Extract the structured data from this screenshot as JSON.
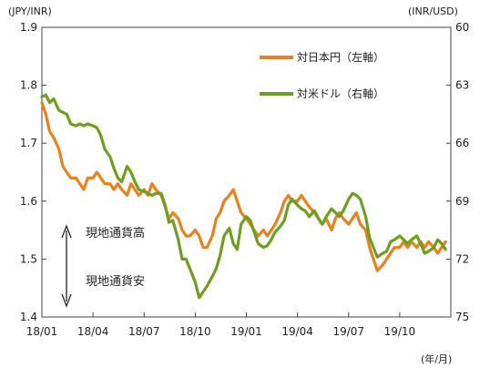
{
  "chart_data": {
    "type": "line",
    "left_axis_unit": "(JPY/INR)",
    "right_axis_unit": "(INR/USD)",
    "x_unit": "(年/月)",
    "left_ylim": [
      1.4,
      1.9
    ],
    "left_ticks": [
      "1.4",
      "1.5",
      "1.6",
      "1.7",
      "1.8",
      "1.9"
    ],
    "right_ylim": [
      60,
      75
    ],
    "right_reversed": true,
    "right_ticks": [
      "60",
      "63",
      "66",
      "69",
      "72",
      "75"
    ],
    "x_tick_labels": [
      "18/01",
      "18/04",
      "18/07",
      "18/10",
      "19/01",
      "19/04",
      "19/07",
      "19/10"
    ],
    "x_range": [
      "2018-01",
      "2020-01"
    ],
    "grid": false,
    "legend_position": "top-right",
    "annotations": [
      "現地通貨高",
      "現地通貨安"
    ],
    "series": [
      {
        "name": "対日本円（左軸）",
        "axis": "left",
        "color": "#E8821E",
        "points": [
          [
            "2018-01-01",
            1.77
          ],
          [
            "2018-01-08",
            1.75
          ],
          [
            "2018-01-15",
            1.72
          ],
          [
            "2018-01-22",
            1.71
          ],
          [
            "2018-02-01",
            1.69
          ],
          [
            "2018-02-08",
            1.66
          ],
          [
            "2018-02-15",
            1.65
          ],
          [
            "2018-02-22",
            1.64
          ],
          [
            "2018-03-01",
            1.64
          ],
          [
            "2018-03-08",
            1.63
          ],
          [
            "2018-03-15",
            1.62
          ],
          [
            "2018-03-22",
            1.64
          ],
          [
            "2018-04-01",
            1.64
          ],
          [
            "2018-04-08",
            1.65
          ],
          [
            "2018-04-15",
            1.64
          ],
          [
            "2018-04-22",
            1.63
          ],
          [
            "2018-05-01",
            1.63
          ],
          [
            "2018-05-08",
            1.62
          ],
          [
            "2018-05-15",
            1.63
          ],
          [
            "2018-05-22",
            1.62
          ],
          [
            "2018-06-01",
            1.61
          ],
          [
            "2018-06-08",
            1.63
          ],
          [
            "2018-06-15",
            1.62
          ],
          [
            "2018-06-22",
            1.61
          ],
          [
            "2018-07-01",
            1.62
          ],
          [
            "2018-07-08",
            1.61
          ],
          [
            "2018-07-15",
            1.63
          ],
          [
            "2018-07-22",
            1.62
          ],
          [
            "2018-08-01",
            1.61
          ],
          [
            "2018-08-08",
            1.59
          ],
          [
            "2018-08-15",
            1.57
          ],
          [
            "2018-08-22",
            1.58
          ],
          [
            "2018-09-01",
            1.57
          ],
          [
            "2018-09-08",
            1.55
          ],
          [
            "2018-09-15",
            1.54
          ],
          [
            "2018-09-22",
            1.54
          ],
          [
            "2018-10-01",
            1.55
          ],
          [
            "2018-10-08",
            1.54
          ],
          [
            "2018-10-15",
            1.52
          ],
          [
            "2018-10-22",
            1.52
          ],
          [
            "2018-11-01",
            1.54
          ],
          [
            "2018-11-08",
            1.57
          ],
          [
            "2018-11-15",
            1.58
          ],
          [
            "2018-11-22",
            1.6
          ],
          [
            "2018-12-01",
            1.61
          ],
          [
            "2018-12-08",
            1.62
          ],
          [
            "2018-12-15",
            1.6
          ],
          [
            "2018-12-22",
            1.58
          ],
          [
            "2019-01-01",
            1.57
          ],
          [
            "2019-01-08",
            1.56
          ],
          [
            "2019-01-15",
            1.55
          ],
          [
            "2019-01-22",
            1.54
          ],
          [
            "2019-02-01",
            1.55
          ],
          [
            "2019-02-08",
            1.54
          ],
          [
            "2019-02-15",
            1.55
          ],
          [
            "2019-02-22",
            1.56
          ],
          [
            "2019-03-01",
            1.58
          ],
          [
            "2019-03-08",
            1.6
          ],
          [
            "2019-03-15",
            1.61
          ],
          [
            "2019-03-22",
            1.6
          ],
          [
            "2019-04-01",
            1.6
          ],
          [
            "2019-04-08",
            1.61
          ],
          [
            "2019-04-15",
            1.6
          ],
          [
            "2019-04-22",
            1.59
          ],
          [
            "2019-05-01",
            1.58
          ],
          [
            "2019-05-08",
            1.57
          ],
          [
            "2019-05-15",
            1.56
          ],
          [
            "2019-05-22",
            1.57
          ],
          [
            "2019-06-01",
            1.55
          ],
          [
            "2019-06-08",
            1.57
          ],
          [
            "2019-06-15",
            1.58
          ],
          [
            "2019-06-22",
            1.57
          ],
          [
            "2019-07-01",
            1.56
          ],
          [
            "2019-07-08",
            1.57
          ],
          [
            "2019-07-15",
            1.58
          ],
          [
            "2019-07-22",
            1.56
          ],
          [
            "2019-08-01",
            1.55
          ],
          [
            "2019-08-08",
            1.52
          ],
          [
            "2019-08-15",
            1.5
          ],
          [
            "2019-08-22",
            1.48
          ],
          [
            "2019-09-01",
            1.49
          ],
          [
            "2019-09-08",
            1.5
          ],
          [
            "2019-09-15",
            1.51
          ],
          [
            "2019-09-22",
            1.52
          ],
          [
            "2019-10-01",
            1.52
          ],
          [
            "2019-10-08",
            1.53
          ],
          [
            "2019-10-15",
            1.52
          ],
          [
            "2019-10-22",
            1.53
          ],
          [
            "2019-11-01",
            1.52
          ],
          [
            "2019-11-08",
            1.53
          ],
          [
            "2019-11-15",
            1.52
          ],
          [
            "2019-11-22",
            1.53
          ],
          [
            "2019-12-01",
            1.52
          ],
          [
            "2019-12-08",
            1.51
          ],
          [
            "2019-12-15",
            1.52
          ],
          [
            "2019-12-22",
            1.53
          ]
        ]
      },
      {
        "name": "対米ドル（右軸）",
        "axis": "right",
        "color": "#6E9E1F",
        "points": [
          [
            "2018-01-01",
            63.6
          ],
          [
            "2018-01-08",
            63.5
          ],
          [
            "2018-01-15",
            63.9
          ],
          [
            "2018-01-22",
            63.7
          ],
          [
            "2018-02-01",
            64.3
          ],
          [
            "2018-02-08",
            64.4
          ],
          [
            "2018-02-15",
            64.5
          ],
          [
            "2018-02-22",
            65.0
          ],
          [
            "2018-03-01",
            65.1
          ],
          [
            "2018-03-08",
            65.0
          ],
          [
            "2018-03-15",
            65.1
          ],
          [
            "2018-03-22",
            65.0
          ],
          [
            "2018-04-01",
            65.1
          ],
          [
            "2018-04-08",
            65.2
          ],
          [
            "2018-04-15",
            65.6
          ],
          [
            "2018-04-22",
            66.3
          ],
          [
            "2018-05-01",
            66.7
          ],
          [
            "2018-05-08",
            67.3
          ],
          [
            "2018-05-15",
            67.8
          ],
          [
            "2018-05-22",
            68.0
          ],
          [
            "2018-06-01",
            67.2
          ],
          [
            "2018-06-08",
            67.5
          ],
          [
            "2018-06-15",
            68.0
          ],
          [
            "2018-06-22",
            68.4
          ],
          [
            "2018-07-01",
            68.5
          ],
          [
            "2018-07-08",
            68.6
          ],
          [
            "2018-07-15",
            68.7
          ],
          [
            "2018-07-22",
            68.6
          ],
          [
            "2018-08-01",
            68.6
          ],
          [
            "2018-08-08",
            69.2
          ],
          [
            "2018-08-15",
            70.1
          ],
          [
            "2018-08-22",
            70.0
          ],
          [
            "2018-09-01",
            71.0
          ],
          [
            "2018-09-08",
            72.0
          ],
          [
            "2018-09-15",
            72.0
          ],
          [
            "2018-09-22",
            72.5
          ],
          [
            "2018-10-01",
            73.2
          ],
          [
            "2018-10-08",
            74.0
          ],
          [
            "2018-10-15",
            73.7
          ],
          [
            "2018-10-22",
            73.4
          ],
          [
            "2018-11-01",
            72.9
          ],
          [
            "2018-11-08",
            72.5
          ],
          [
            "2018-11-15",
            71.8
          ],
          [
            "2018-11-22",
            70.8
          ],
          [
            "2018-12-01",
            70.4
          ],
          [
            "2018-12-08",
            71.2
          ],
          [
            "2018-12-15",
            71.5
          ],
          [
            "2018-12-22",
            70.2
          ],
          [
            "2019-01-01",
            69.8
          ],
          [
            "2019-01-08",
            70.0
          ],
          [
            "2019-01-15",
            70.6
          ],
          [
            "2019-01-22",
            71.2
          ],
          [
            "2019-02-01",
            71.4
          ],
          [
            "2019-02-08",
            71.3
          ],
          [
            "2019-02-15",
            71.0
          ],
          [
            "2019-02-22",
            70.6
          ],
          [
            "2019-03-01",
            70.3
          ],
          [
            "2019-03-08",
            70.0
          ],
          [
            "2019-03-15",
            69.2
          ],
          [
            "2019-03-22",
            68.9
          ],
          [
            "2019-04-01",
            69.2
          ],
          [
            "2019-04-08",
            69.4
          ],
          [
            "2019-04-15",
            69.5
          ],
          [
            "2019-04-22",
            69.8
          ],
          [
            "2019-05-01",
            69.5
          ],
          [
            "2019-05-08",
            69.9
          ],
          [
            "2019-05-15",
            70.2
          ],
          [
            "2019-05-22",
            69.8
          ],
          [
            "2019-06-01",
            69.4
          ],
          [
            "2019-06-08",
            69.6
          ],
          [
            "2019-06-15",
            69.8
          ],
          [
            "2019-06-22",
            69.5
          ],
          [
            "2019-07-01",
            68.9
          ],
          [
            "2019-07-08",
            68.6
          ],
          [
            "2019-07-15",
            68.7
          ],
          [
            "2019-07-22",
            68.9
          ],
          [
            "2019-08-01",
            69.8
          ],
          [
            "2019-08-08",
            70.9
          ],
          [
            "2019-08-15",
            71.4
          ],
          [
            "2019-08-22",
            71.9
          ],
          [
            "2019-09-01",
            71.7
          ],
          [
            "2019-09-08",
            71.6
          ],
          [
            "2019-09-15",
            71.1
          ],
          [
            "2019-09-22",
            71.0
          ],
          [
            "2019-10-01",
            70.8
          ],
          [
            "2019-10-08",
            71.0
          ],
          [
            "2019-10-15",
            71.2
          ],
          [
            "2019-10-22",
            71.0
          ],
          [
            "2019-11-01",
            70.8
          ],
          [
            "2019-11-08",
            71.2
          ],
          [
            "2019-11-15",
            71.7
          ],
          [
            "2019-11-22",
            71.6
          ],
          [
            "2019-12-01",
            71.4
          ],
          [
            "2019-12-08",
            71.0
          ],
          [
            "2019-12-15",
            71.2
          ],
          [
            "2019-12-22",
            71.5
          ]
        ]
      }
    ]
  }
}
